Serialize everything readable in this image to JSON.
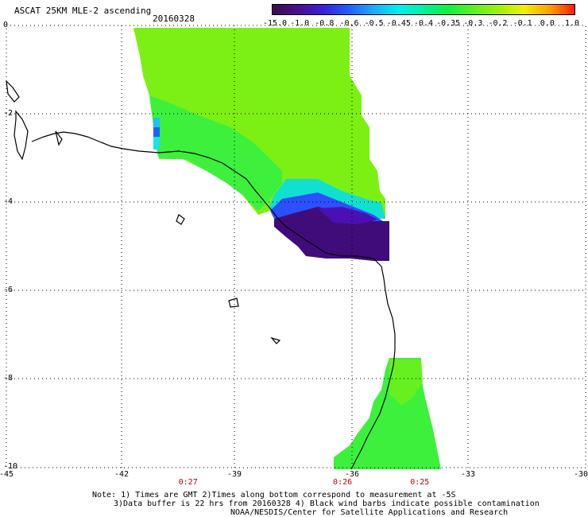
{
  "header": {
    "title": "ASCAT 25KM MLE-2 ascending",
    "date": "20160328"
  },
  "colorbar": {
    "labels": [
      "-15.0",
      "-1.0",
      "-0.8",
      "-0.6",
      "-0.5",
      "-0.45",
      "-0.4",
      "-0.35",
      "-0.3",
      "-0.2",
      "-0.1",
      "0.0",
      "1.0"
    ],
    "colors": [
      "#3c0a4a",
      "#4b0f8c",
      "#3a1fd6",
      "#1f5cff",
      "#1ea8ff",
      "#00f0f0",
      "#00f0a0",
      "#10f040",
      "#60f020",
      "#a0f010",
      "#f0f000",
      "#ffa000",
      "#ff2000"
    ]
  },
  "map": {
    "lat_labels": [
      "0",
      "-2",
      "-4",
      "-6",
      "-8",
      "-10"
    ],
    "lon_labels": [
      "-45",
      "-42",
      "-39",
      "-36",
      "-33",
      "-30"
    ],
    "time_labels": [
      {
        "text": "0:27",
        "lon": -40.5
      },
      {
        "text": "0:26",
        "lon": -36.5
      },
      {
        "text": "0:25",
        "lon": -34.5
      }
    ]
  },
  "footer": {
    "note1": "Note: 1) Times are GMT 2)Times along bottom correspond to measurement at -5S",
    "note2": "3)Data buffer is 22 hrs from 20160328 4) Black wind barbs indicate possible contamination",
    "note3": "NOAA/NESDIS/Center for Satellite Applications and Research"
  }
}
